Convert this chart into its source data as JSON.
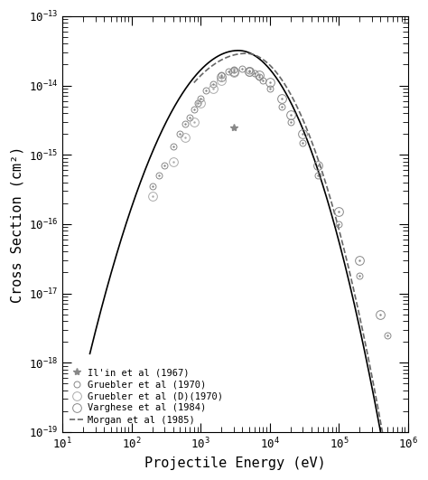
{
  "title": "",
  "xlabel": "Projectile Energy (eV)",
  "ylabel": "Cross Section (cm²)",
  "xlim": [
    10,
    1000000.0
  ],
  "ylim": [
    1e-19,
    1e-13
  ],
  "bg_color": "#ffffff",
  "solid_curve_color": "#000000",
  "solid_curve_lw": 1.2,
  "dashed_curve_color": "#666666",
  "dashed_curve_lw": 1.2,
  "gruebler1970_x": [
    200,
    250,
    300,
    400,
    500,
    600,
    700,
    800,
    900,
    1000,
    1200,
    1500,
    2000,
    2500,
    3000,
    4000,
    5000,
    6000,
    7000,
    8000,
    10000,
    15000,
    20000,
    30000,
    50000,
    100000,
    200000,
    500000
  ],
  "gruebler1970_y": [
    3.5e-16,
    5e-16,
    7e-16,
    1.3e-15,
    2e-15,
    2.8e-15,
    3.5e-15,
    4.5e-15,
    5.5e-15,
    6.5e-15,
    8.5e-15,
    1.05e-14,
    1.4e-14,
    1.6e-14,
    1.7e-14,
    1.75e-14,
    1.65e-14,
    1.5e-14,
    1.35e-14,
    1.2e-14,
    9e-15,
    5e-15,
    3e-15,
    1.5e-15,
    5e-16,
    1e-16,
    1.8e-17,
    2.5e-18
  ],
  "gruebler1970D_x": [
    200,
    400,
    600,
    800,
    1000,
    1500,
    2000,
    3000,
    5000
  ],
  "gruebler1970D_y": [
    2.5e-16,
    8e-16,
    1.8e-15,
    3e-15,
    5.5e-15,
    9e-15,
    1.2e-14,
    1.55e-14,
    1.6e-14
  ],
  "varghese1984_x": [
    2000,
    3000,
    5000,
    7000,
    10000,
    15000,
    20000,
    30000,
    50000,
    100000,
    200000,
    400000
  ],
  "varghese1984_y": [
    1.35e-14,
    1.6e-14,
    1.6e-14,
    1.4e-14,
    1.1e-14,
    6.5e-15,
    3.8e-15,
    2e-15,
    7e-16,
    1.5e-16,
    3e-17,
    5e-18
  ],
  "ilyin1967_x": [
    3000
  ],
  "ilyin1967_y": [
    2.5e-15
  ],
  "legend_fontsize": 7.5,
  "tick_fontsize": 9,
  "label_fontsize": 11
}
